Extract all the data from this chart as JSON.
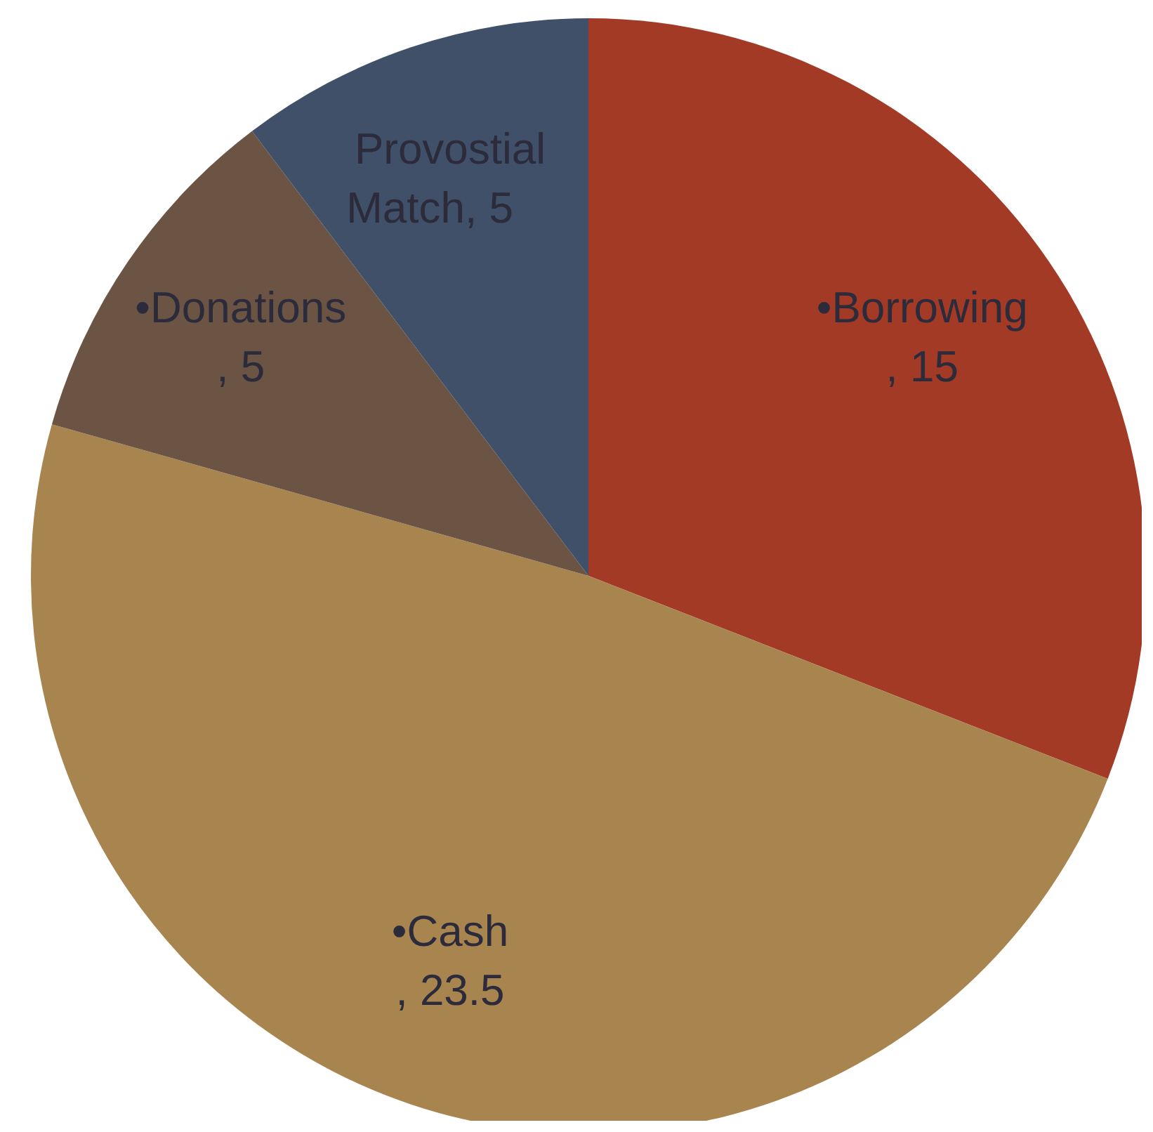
{
  "chart_data": {
    "type": "pie",
    "categories": [
      "•Borrowing",
      "•Cash",
      "•Donations",
      "Provostial Match"
    ],
    "values": [
      15,
      23.5,
      5,
      5
    ],
    "colors": [
      "#a33a26",
      "#a8844f",
      "#6b5444",
      "#3f5068"
    ],
    "value_labels": [
      ", 15",
      ", 23.5",
      ", 5",
      ", 5"
    ]
  }
}
